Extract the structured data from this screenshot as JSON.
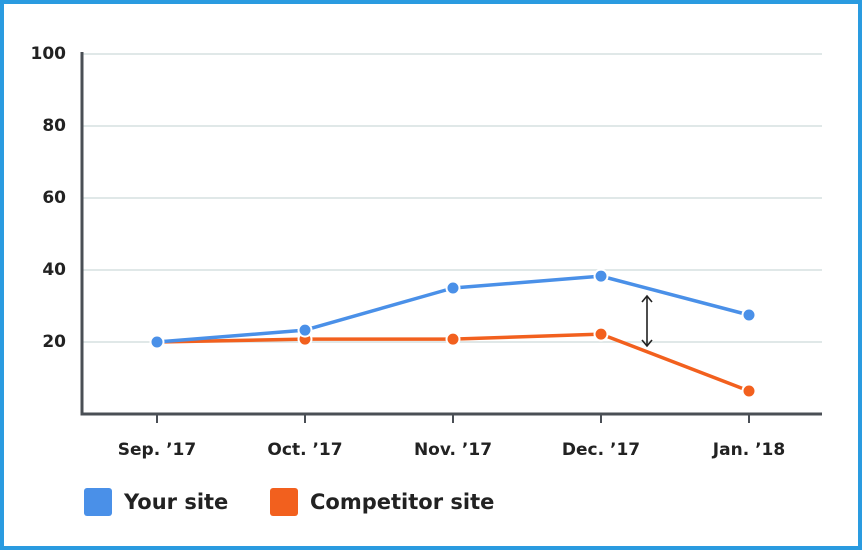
{
  "chart_data": {
    "type": "line",
    "categories": [
      "Sep. ’17",
      "Oct. ’17",
      "Nov. ’17",
      "Dec. ’17",
      "Jan. ’18"
    ],
    "series": [
      {
        "name": "Your site",
        "color": "#4a90e8",
        "values": [
          20,
          23.3,
          35,
          38.3,
          27.5
        ]
      },
      {
        "name": "Competitor site",
        "color": "#f2601e",
        "values": [
          20,
          20.8,
          20.8,
          22.2,
          6.4
        ]
      }
    ],
    "ylim": [
      0,
      100
    ],
    "yticks": [
      20,
      40,
      60,
      80,
      100
    ],
    "grid": true
  }
}
